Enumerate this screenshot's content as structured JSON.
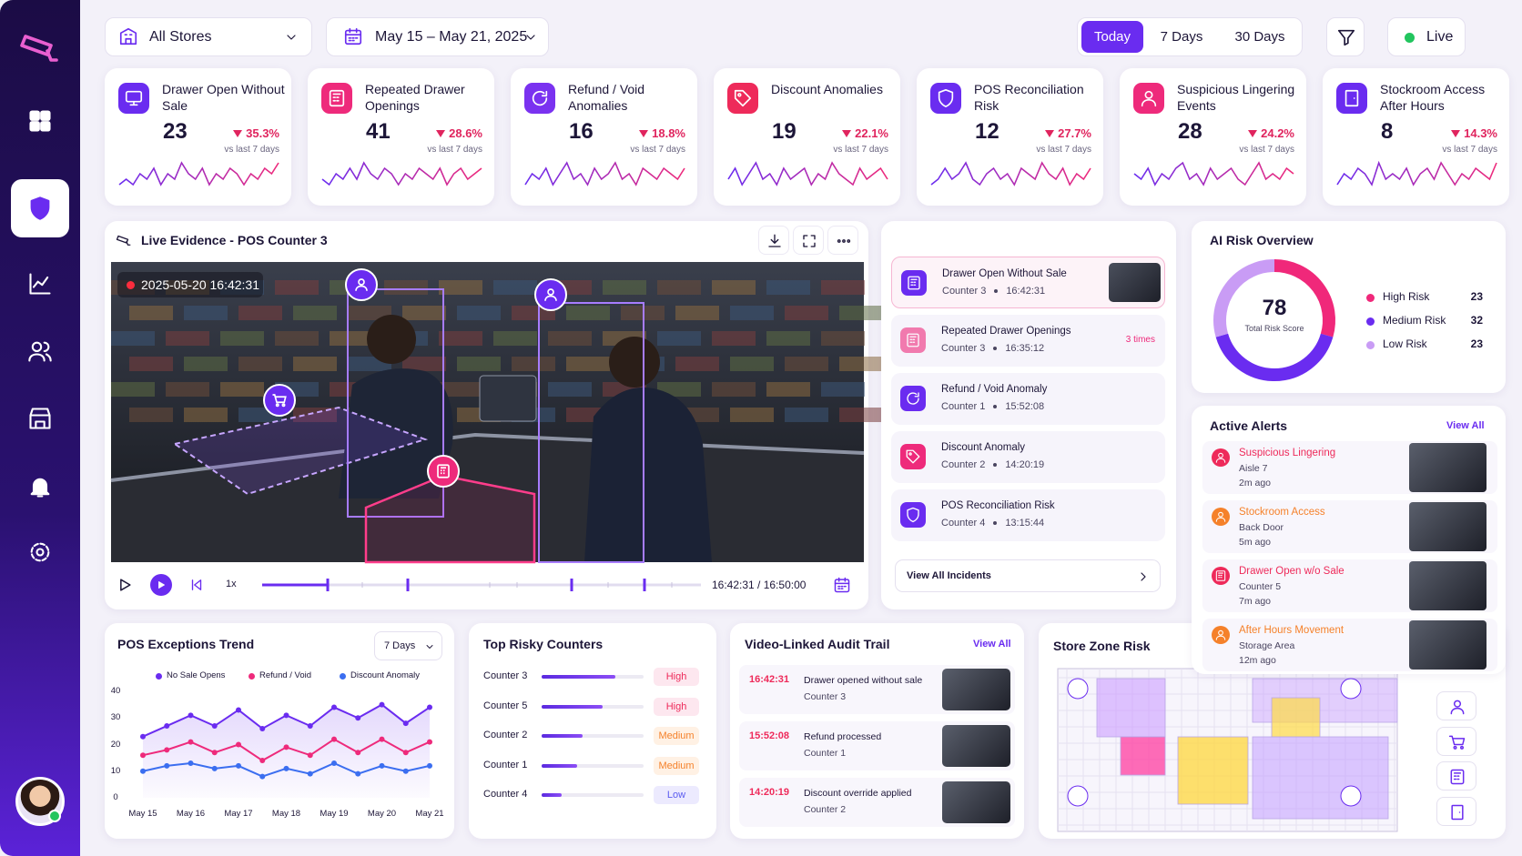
{
  "filters": {
    "store": "All Stores",
    "date": "May 15 – May 21, 2025",
    "ranges": [
      "Today",
      "7 Days",
      "30 Days"
    ],
    "status": "Live"
  },
  "kpis": [
    {
      "title": "Drawer Open Without Sale",
      "value": 23,
      "change": "35.3%",
      "compare": "vs last 7 days",
      "trend": [
        3,
        4,
        3,
        5,
        4,
        6,
        3,
        5,
        4,
        7,
        5,
        4,
        6,
        3,
        5,
        4,
        6,
        5,
        3,
        5,
        4,
        6,
        5,
        7
      ]
    },
    {
      "title": "Repeated Drawer Openings",
      "value": 41,
      "change": "28.6%",
      "compare": "vs last 7 days",
      "trend": [
        4,
        3,
        5,
        4,
        6,
        4,
        7,
        5,
        4,
        6,
        5,
        3,
        5,
        4,
        6,
        5,
        4,
        6,
        3,
        5,
        6,
        4,
        5,
        6
      ]
    },
    {
      "title": "Refund / Void Anomalies",
      "value": 16,
      "change": "18.8%",
      "compare": "vs last 7 days",
      "trend": [
        3,
        5,
        4,
        6,
        3,
        5,
        7,
        4,
        5,
        3,
        6,
        4,
        5,
        7,
        4,
        5,
        3,
        6,
        5,
        4,
        6,
        5,
        4,
        6
      ]
    },
    {
      "title": "Discount Anomalies",
      "value": 19,
      "change": "22.1%",
      "compare": "vs last 7 days",
      "trend": [
        4,
        6,
        3,
        5,
        7,
        4,
        5,
        3,
        6,
        4,
        5,
        6,
        3,
        5,
        4,
        7,
        5,
        4,
        3,
        6,
        4,
        5,
        6,
        4
      ]
    },
    {
      "title": "POS Reconciliation Risk",
      "value": 12,
      "change": "27.7%",
      "compare": "vs last 7 days",
      "trend": [
        3,
        4,
        6,
        4,
        5,
        7,
        4,
        3,
        5,
        6,
        4,
        5,
        3,
        6,
        5,
        4,
        7,
        5,
        4,
        6,
        3,
        5,
        4,
        6
      ]
    },
    {
      "title": "Suspicious Lingering Events",
      "value": 28,
      "change": "24.2%",
      "compare": "vs last 7 days",
      "trend": [
        5,
        4,
        6,
        3,
        5,
        4,
        6,
        7,
        4,
        5,
        3,
        6,
        4,
        5,
        6,
        4,
        3,
        5,
        7,
        4,
        5,
        4,
        6,
        5
      ]
    },
    {
      "title": "Stockroom Access After Hours",
      "value": 8,
      "change": "14.3%",
      "compare": "vs last 7 days",
      "trend": [
        3,
        5,
        4,
        6,
        5,
        3,
        7,
        4,
        5,
        4,
        6,
        3,
        5,
        6,
        4,
        7,
        5,
        3,
        5,
        4,
        6,
        5,
        4,
        7
      ]
    }
  ],
  "video": {
    "title": "Live Evidence - POS Counter 3",
    "timestamp": "2025-05-20 16:42:31",
    "speed": "1x",
    "time": "16:42:31 / 16:50:00"
  },
  "incidents": {
    "items": [
      {
        "title": "Drawer Open Without Sale",
        "counter": "Counter 3",
        "time": "16:42:31"
      },
      {
        "title": "Repeated Drawer Openings",
        "counter": "Counter 3",
        "time": "16:35:12",
        "note": "3 times"
      },
      {
        "title": "Refund / Void Anomaly",
        "counter": "Counter 1",
        "time": "15:52:08"
      },
      {
        "title": "Discount Anomaly",
        "counter": "Counter 2",
        "time": "14:20:19"
      },
      {
        "title": "POS Reconciliation Risk",
        "counter": "Counter 4",
        "time": "13:15:44"
      }
    ],
    "link": "View All Incidents"
  },
  "risk": {
    "title": "AI Risk Overview",
    "score": 78,
    "score_label": "Total Risk Score",
    "levels": [
      {
        "name": "High Risk",
        "value": 23,
        "color": "#f0287a"
      },
      {
        "name": "Medium Risk",
        "value": 32,
        "color": "#6a2cf0"
      },
      {
        "name": "Low Risk",
        "value": 23,
        "color": "#c99cf5"
      }
    ]
  },
  "alerts": {
    "title": "Active Alerts",
    "link": "View All",
    "items": [
      {
        "title": "Suspicious Lingering",
        "location": "Aisle 7",
        "time": "2m ago",
        "color": "#ee2a5a"
      },
      {
        "title": "Stockroom Access",
        "location": "Back Door",
        "time": "5m ago",
        "color": "#f5812a"
      },
      {
        "title": "Drawer Open w/o Sale",
        "location": "Counter 5",
        "time": "7m ago",
        "color": "#ee2a5a"
      },
      {
        "title": "After Hours Movement",
        "location": "Storage Area",
        "time": "12m ago",
        "color": "#f5812a"
      }
    ]
  },
  "chart_data": {
    "type": "line",
    "title": "POS Exceptions Trend",
    "period": "7 Days",
    "categories": [
      "May 15",
      null,
      "May 16",
      null,
      "May 17",
      null,
      "May 18",
      null,
      "May 19",
      null,
      "May 20",
      null,
      "May 21"
    ],
    "series": [
      {
        "name": "No Sale Opens",
        "color": "#6a2cf0",
        "values": [
          23,
          27,
          31,
          27,
          33,
          26,
          31,
          27,
          34,
          30,
          35,
          28,
          34
        ]
      },
      {
        "name": "Refund / Void",
        "color": "#ee2a7b",
        "values": [
          16,
          18,
          21,
          17,
          20,
          14,
          19,
          16,
          22,
          17,
          22,
          17,
          21
        ]
      },
      {
        "name": "Discount Anomaly",
        "color": "#3b6ef0",
        "values": [
          10,
          12,
          13,
          11,
          12,
          8,
          11,
          9,
          13,
          9,
          12,
          10,
          12
        ]
      }
    ],
    "ylim": [
      0,
      40
    ],
    "yticks": [
      0,
      10,
      20,
      30,
      40
    ]
  },
  "counters": {
    "title": "Top Risky Counters",
    "xlim": [
      0,
      100
    ],
    "items": [
      {
        "name": "Counter 3",
        "score": 72,
        "level": "High"
      },
      {
        "name": "Counter 5",
        "score": 60,
        "level": "High"
      },
      {
        "name": "Counter 2",
        "score": 40,
        "level": "Medium"
      },
      {
        "name": "Counter 1",
        "score": 35,
        "level": "Medium"
      },
      {
        "name": "Counter 4",
        "score": 20,
        "level": "Low"
      }
    ]
  },
  "audit": {
    "title": "Video-Linked Audit Trail",
    "link": "View All",
    "items": [
      {
        "time": "16:42:31",
        "action": "Drawer opened without sale",
        "counter": "Counter 3"
      },
      {
        "time": "15:52:08",
        "action": "Refund processed",
        "counter": "Counter 1"
      },
      {
        "time": "14:20:19",
        "action": "Discount override applied",
        "counter": "Counter 2"
      }
    ]
  },
  "zones": {
    "title": "Store Zone Risk"
  }
}
